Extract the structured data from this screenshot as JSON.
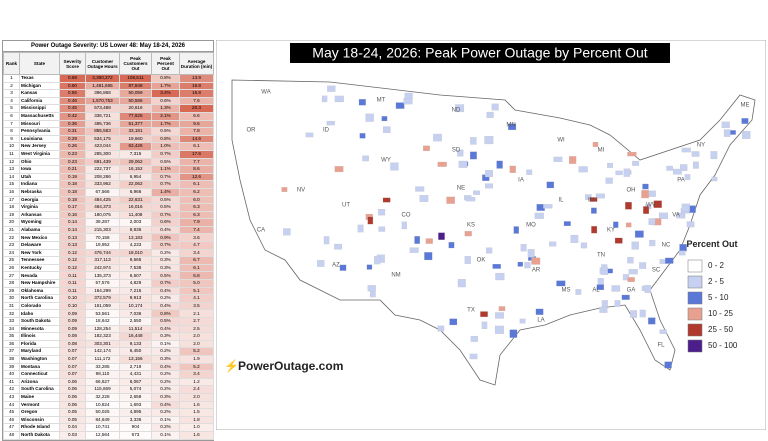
{
  "table": {
    "title": "Power Outage Severity: US Lower 48: May 18-24, 2026",
    "columns": [
      "Rank",
      "State",
      "Severity Score",
      "Customer Outage Hours",
      "Peak Customers Out",
      "Peak Percent Out",
      "Average Duration (min)"
    ],
    "rows": [
      [
        "1",
        "Texas",
        "0.68",
        "3,390,372",
        "108,511",
        "0.8%",
        "13.9"
      ],
      [
        "2",
        "Michigan",
        "0.60",
        "1,481,665",
        "87,848",
        "1.7%",
        "16.8"
      ],
      [
        "3",
        "Kansas",
        "0.56",
        "396,868",
        "50,059",
        "3.4%",
        "16.8"
      ],
      [
        "4",
        "California",
        "0.46",
        "1,570,753",
        "50,586",
        "0.6%",
        "7.6"
      ],
      [
        "5",
        "Mississippi",
        "0.45",
        "573,488",
        "20,616",
        "1.3%",
        "20.3"
      ],
      [
        "6",
        "Massachusetts",
        "0.42",
        "336,721",
        "77,625",
        "2.1%",
        "6.6"
      ],
      [
        "7",
        "Missouri",
        "0.36",
        "495,736",
        "51,377",
        "1.7%",
        "9.6"
      ],
      [
        "8",
        "Pennsylvania",
        "0.31",
        "855,583",
        "33,181",
        "0.5%",
        "7.8"
      ],
      [
        "9",
        "Louisiana",
        "0.29",
        "534,175",
        "19,660",
        "0.8%",
        "14.6"
      ],
      [
        "10",
        "New Jersey",
        "0.26",
        "423,044",
        "63,426",
        "1.0%",
        "6.1"
      ],
      [
        "11",
        "West Virginia",
        "0.23",
        "285,300",
        "7,315",
        "0.7%",
        "17.6"
      ],
      [
        "12",
        "Ohio",
        "0.23",
        "691,439",
        "29,062",
        "0.5%",
        "7.7"
      ],
      [
        "13",
        "Iowa",
        "0.21",
        "222,737",
        "16,152",
        "1.1%",
        "8.6"
      ],
      [
        "14",
        "Utah",
        "0.19",
        "208,286",
        "6,954",
        "0.7%",
        "12.6"
      ],
      [
        "15",
        "Indiana",
        "0.18",
        "333,962",
        "22,062",
        "0.7%",
        "6.1"
      ],
      [
        "16",
        "Nebraska",
        "0.18",
        "67,566",
        "6,966",
        "1.4%",
        "6.2"
      ],
      [
        "17",
        "Georgia",
        "0.18",
        "484,425",
        "22,631",
        "0.5%",
        "6.0"
      ],
      [
        "18",
        "Virginia",
        "0.17",
        "464,373",
        "16,016",
        "0.5%",
        "6.3"
      ],
      [
        "19",
        "Arkansas",
        "0.16",
        "180,075",
        "11,408",
        "0.7%",
        "6.3"
      ],
      [
        "20",
        "Wyoming",
        "0.14",
        "39,287",
        "2,003",
        "0.6%",
        "7.9"
      ],
      [
        "21",
        "Alabama",
        "0.14",
        "215,303",
        "8,836",
        "0.4%",
        "7.4"
      ],
      [
        "22",
        "New Mexico",
        "0.13",
        "70,158",
        "13,183",
        "0.9%",
        "3.6"
      ],
      [
        "23",
        "Delaware",
        "0.13",
        "19,952",
        "4,233",
        "0.7%",
        "4.7"
      ],
      [
        "24",
        "New York",
        "0.12",
        "476,744",
        "18,010",
        "0.2%",
        "3.4"
      ],
      [
        "25",
        "Tennessee",
        "0.12",
        "317,113",
        "9,565",
        "0.3%",
        "6.7"
      ],
      [
        "26",
        "Kentucky",
        "0.12",
        "242,974",
        "7,538",
        "0.3%",
        "6.1"
      ],
      [
        "27",
        "Nevada",
        "0.11",
        "135,373",
        "6,507",
        "0.5%",
        "6.8"
      ],
      [
        "28",
        "New Hampshire",
        "0.11",
        "57,576",
        "4,829",
        "0.7%",
        "5.0"
      ],
      [
        "29",
        "Oklahoma",
        "0.11",
        "164,299",
        "7,215",
        "0.4%",
        "5.1"
      ],
      [
        "30",
        "North Carolina",
        "0.10",
        "372,579",
        "9,913",
        "0.2%",
        "4.1"
      ],
      [
        "31",
        "Colorado",
        "0.10",
        "151,059",
        "10,174",
        "0.4%",
        "3.5"
      ],
      [
        "32",
        "Idaho",
        "0.09",
        "53,561",
        "7,036",
        "0.8%",
        "2.1"
      ],
      [
        "33",
        "South Dakota",
        "0.09",
        "18,642",
        "2,550",
        "0.5%",
        "2.7"
      ],
      [
        "34",
        "Minnesota",
        "0.09",
        "128,254",
        "11,514",
        "0.4%",
        "2.5"
      ],
      [
        "35",
        "Illinois",
        "0.08",
        "182,323",
        "16,448",
        "0.3%",
        "2.0"
      ],
      [
        "36",
        "Florida",
        "0.08",
        "303,301",
        "9,133",
        "0.1%",
        "2.0"
      ],
      [
        "37",
        "Maryland",
        "0.07",
        "142,174",
        "6,450",
        "0.2%",
        "5.2"
      ],
      [
        "38",
        "Washington",
        "0.07",
        "111,172",
        "13,156",
        "0.3%",
        "1.9"
      ],
      [
        "39",
        "Montana",
        "0.07",
        "33,285",
        "2,719",
        "0.4%",
        "5.2"
      ],
      [
        "40",
        "Connecticut",
        "0.07",
        "98,110",
        "4,431",
        "0.2%",
        "3.4"
      ],
      [
        "41",
        "Arizona",
        "0.06",
        "66,627",
        "6,067",
        "0.2%",
        "1.2"
      ],
      [
        "42",
        "South Carolina",
        "0.06",
        "115,669",
        "5,074",
        "0.2%",
        "2.4"
      ],
      [
        "43",
        "Maine",
        "0.06",
        "32,228",
        "2,658",
        "0.3%",
        "2.0"
      ],
      [
        "44",
        "Vermont",
        "0.06",
        "10,824",
        "1,693",
        "0.4%",
        "1.6"
      ],
      [
        "45",
        "Oregon",
        "0.05",
        "50,025",
        "4,895",
        "0.2%",
        "1.5"
      ],
      [
        "46",
        "Wisconsin",
        "0.05",
        "84,649",
        "3,336",
        "0.1%",
        "1.8"
      ],
      [
        "47",
        "Rhode Island",
        "0.04",
        "10,741",
        "904",
        "0.2%",
        "1.0"
      ],
      [
        "48",
        "North Dakota",
        "0.03",
        "12,564",
        "673",
        "0.1%",
        "1.6"
      ]
    ]
  },
  "map": {
    "title": "May 18-24, 2026: Peak Power Outage by Percent Out",
    "legend_title": "Percent Out",
    "legend": [
      {
        "label": "0 - 2",
        "color": "#ffffff"
      },
      {
        "label": "2 - 5",
        "color": "#c6d0f0"
      },
      {
        "label": "5 - 10",
        "color": "#5a78d8"
      },
      {
        "label": "10 - 25",
        "color": "#e8a090"
      },
      {
        "label": "25 - 50",
        "color": "#b03a2e"
      },
      {
        "label": "50 - 100",
        "color": "#4b1e8c"
      }
    ],
    "state_labels": [
      "WA",
      "OR",
      "CA",
      "NV",
      "ID",
      "MT",
      "WY",
      "UT",
      "CO",
      "AZ",
      "NM",
      "ND",
      "SD",
      "NE",
      "KS",
      "OK",
      "TX",
      "MN",
      "IA",
      "MO",
      "AR",
      "LA",
      "WI",
      "IL",
      "MS",
      "MI",
      "IN",
      "KY",
      "TN",
      "AL",
      "OH",
      "GA",
      "FL",
      "SC",
      "NC",
      "VA",
      "WV",
      "PA",
      "NY",
      "ME"
    ],
    "logo": "PowerOutage.com"
  }
}
